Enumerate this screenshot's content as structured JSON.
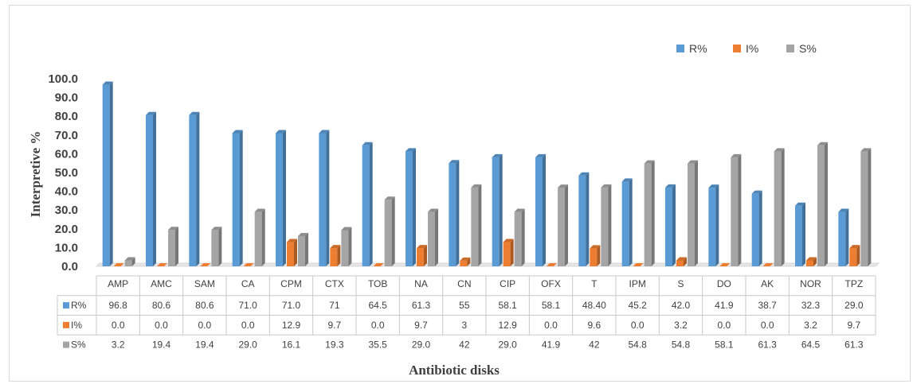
{
  "chart_data": {
    "type": "bar",
    "ylabel": "Interpretive %",
    "xlabel": "Antibiotic disks",
    "ylim": [
      0,
      100
    ],
    "yticks": [
      "0.0",
      "10.0",
      "20.0",
      "30.0",
      "40.0",
      "50.0",
      "60.0",
      "70.0",
      "80.0",
      "90.0",
      "100.0"
    ],
    "legend_position": "top-right",
    "grid": false,
    "categories": [
      "AMP",
      "AMC",
      "SAM",
      "CA",
      "CPM",
      "CTX",
      "TOB",
      "NA",
      "CN",
      "CIP",
      "OFX",
      "T",
      "IPM",
      "S",
      "DO",
      "AK",
      "NOR",
      "TPZ"
    ],
    "series": [
      {
        "name": "R%",
        "color": "#5b9bd5",
        "values": [
          96.8,
          80.6,
          80.6,
          71.0,
          71.0,
          71,
          64.5,
          61.3,
          55,
          58.1,
          58.1,
          48.4,
          45.2,
          42.0,
          41.9,
          38.7,
          32.3,
          29.0
        ],
        "labels": [
          "96.8",
          "80.6",
          "80.6",
          "71.0",
          "71.0",
          "71",
          "64.5",
          "61.3",
          "55",
          "58.1",
          "58.1",
          "48.40",
          "45.2",
          "42.0",
          "41.9",
          "38.7",
          "32.3",
          "29.0"
        ]
      },
      {
        "name": "I%",
        "color": "#ed7d31",
        "values": [
          0.0,
          0.0,
          0.0,
          0.0,
          12.9,
          9.7,
          0.0,
          9.7,
          3,
          12.9,
          0.0,
          9.6,
          0.0,
          3.2,
          0.0,
          0.0,
          3.2,
          9.7
        ],
        "labels": [
          "0.0",
          "0.0",
          "0.0",
          "0.0",
          "12.9",
          "9.7",
          "0.0",
          "9.7",
          "3",
          "12.9",
          "0.0",
          "9.6",
          "0.0",
          "3.2",
          "0.0",
          "0.0",
          "3.2",
          "9.7"
        ]
      },
      {
        "name": "S%",
        "color": "#a5a5a5",
        "values": [
          3.2,
          19.4,
          19.4,
          29.0,
          16.1,
          19.3,
          35.5,
          29.0,
          42,
          29.0,
          41.9,
          42,
          54.8,
          54.8,
          58.1,
          61.3,
          64.5,
          61.3
        ],
        "labels": [
          "3.2",
          "19.4",
          "19.4",
          "29.0",
          "16.1",
          "19.3",
          "35.5",
          "29.0",
          "42",
          "29.0",
          "41.9",
          "42",
          "54.8",
          "54.8",
          "58.1",
          "61.3",
          "64.5",
          "61.3"
        ]
      }
    ]
  }
}
